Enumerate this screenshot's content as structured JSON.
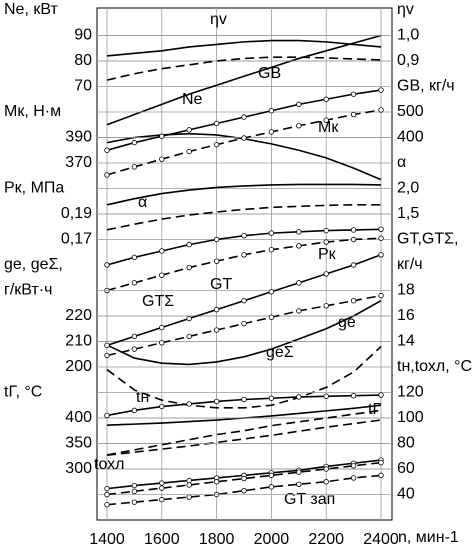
{
  "chart_data": {
    "type": "line",
    "color": "#000000",
    "grid": true,
    "x": [
      1400,
      1500,
      1600,
      1700,
      1800,
      1900,
      2000,
      2100,
      2200,
      2300,
      2400
    ],
    "xlim": [
      1400,
      2400
    ],
    "xticks": [
      1400,
      1600,
      1800,
      2000,
      2200,
      2400
    ],
    "xlabel": "n, мин-1",
    "axes": [
      {
        "side": "left",
        "label": [
          "Ne, кВт"
        ],
        "ylim": [
          -100,
          100
        ],
        "yticks": [
          70,
          80,
          90
        ],
        "series": [
          {
            "name": "Ne",
            "dash": false,
            "markers": false,
            "values": [
              55,
              59,
              63,
              67,
              70.5,
              74,
              77.5,
              81,
              84,
              87,
              90
            ]
          }
        ]
      },
      {
        "side": "left",
        "label": [
          "Мк, Н·м"
        ],
        "ylim": [
          90,
          490
        ],
        "yticks": [
          370,
          390
        ],
        "series": [
          {
            "name": "Мк",
            "dash": false,
            "markers": false,
            "values": [
              386,
              390,
              392,
              393,
              392,
              389,
              385,
              380,
              374,
              366,
              357
            ]
          }
        ]
      },
      {
        "side": "left",
        "label": [
          "Pк, МПа"
        ],
        "ylim": [
          -0.05,
          0.35
        ],
        "yticks": [
          {
            "value": 0.17,
            "label": "0,17"
          },
          {
            "value": 0.19,
            "label": "0,19"
          }
        ],
        "series": [
          {
            "name": "Pк",
            "dash": false,
            "markers": true,
            "values": [
              0.15,
              0.156,
              0.161,
              0.166,
              0.17,
              0.173,
              0.175,
              0.176,
              0.177,
              0.1775,
              0.178
            ]
          },
          {
            "dash": true,
            "markers": true,
            "values": [
              0.13,
              0.136,
              0.142,
              0.148,
              0.153,
              0.158,
              0.162,
              0.165,
              0.168,
              0.17,
              0.171
            ]
          }
        ]
      },
      {
        "side": "left",
        "label": [
          "ge, geΣ,",
          "г/кВт·ч"
        ],
        "ylim": [
          140,
          340
        ],
        "yticks": [
          200,
          210,
          220
        ],
        "series": [
          {
            "name": "ge",
            "dash": false,
            "markers": false,
            "values": [
              208.6,
              203.5,
              201.5,
              201,
              202,
              204,
              207,
              211,
              215,
              220,
              226
            ]
          },
          {
            "name": "geΣ",
            "dash": true,
            "markers": false,
            "values": [
              199,
              191,
              187,
              185,
              184,
              184,
              185,
              188,
              192,
              198,
              208
            ]
          }
        ]
      },
      {
        "side": "left",
        "label": [
          "tΓ, °C"
        ],
        "ylim": [
          200,
          1200
        ],
        "yticks": [
          300,
          350,
          400
        ],
        "series": [
          {
            "name": "tΓ",
            "dash": false,
            "markers": false,
            "values": [
              386,
              388,
              390,
              393,
              396,
              400,
              404,
              409,
              414,
              419,
              425
            ]
          },
          {
            "dash": true,
            "markers": false,
            "values": [
              327,
              333,
              339,
              345,
              352,
              359,
              366,
              374,
              382,
              389,
              396
            ]
          }
        ]
      },
      {
        "side": "right",
        "label": [
          "ηv"
        ],
        "ylim": [
          -0.9,
          1.1
        ],
        "yticks": [
          {
            "value": 0.9,
            "label": "0,9"
          },
          {
            "value": 1,
            "label": "1,0"
          }
        ],
        "series": [
          {
            "name": "ηv",
            "dash": false,
            "markers": false,
            "values": [
              0.92,
              0.93,
              0.94,
              0.955,
              0.965,
              0.975,
              0.98,
              0.98,
              0.975,
              0.965,
              0.955
            ]
          },
          {
            "dash": true,
            "markers": false,
            "values": [
              0.825,
              0.85,
              0.87,
              0.885,
              0.9,
              0.91,
              0.915,
              0.915,
              0.912,
              0.908,
              0.904
            ]
          }
        ]
      },
      {
        "side": "right",
        "label": [
          "GВ, кг/ч"
        ],
        "ylim": [
          -1100,
          900
        ],
        "yticks": [
          400,
          500
        ],
        "series": [
          {
            "name": "GВ",
            "dash": false,
            "markers": true,
            "values": [
              350,
              380,
              405,
              430,
              455,
              480,
              505,
              530,
              550,
              570,
              586
            ]
          },
          {
            "dash": true,
            "markers": true,
            "values": [
              253,
              285,
              315,
              345,
              372,
              398,
              422,
              446,
              468,
              490,
              508
            ]
          }
        ]
      },
      {
        "side": "right",
        "label": [
          "α"
        ],
        "ylim": [
          -4.5,
          5.5
        ],
        "yticks": [
          {
            "value": 1.5,
            "label": "1,5"
          },
          {
            "value": 2,
            "label": "2,0"
          }
        ],
        "series": [
          {
            "dash": false,
            "markers": false,
            "values": [
              1.68,
              1.8,
              1.9,
              1.97,
              2.02,
              2.05,
              2.07,
              2.08,
              2.08,
              2.08,
              2.07
            ]
          },
          {
            "name": "α",
            "dash": true,
            "markers": false,
            "values": [
              1.19,
              1.3,
              1.4,
              1.48,
              1.54,
              1.59,
              1.63,
              1.65,
              1.67,
              1.68,
              1.68
            ]
          }
        ]
      },
      {
        "side": "right",
        "label": [
          "GT,GTΣ,",
          "кг/ч"
        ],
        "ylim": [
          0,
          40
        ],
        "yticks": [
          14,
          16,
          18
        ],
        "series": [
          {
            "name": "GT",
            "dash": false,
            "markers": true,
            "values": [
              13.7,
              14.4,
              15.1,
              15.8,
              16.5,
              17.2,
              17.9,
              18.6,
              19.3,
              20,
              20.8
            ]
          },
          {
            "name": "GTΣ",
            "dash": true,
            "markers": true,
            "values": [
              12.9,
              13.4,
              13.9,
              14.4,
              14.9,
              15.4,
              15.9,
              16.4,
              16.8,
              17.2,
              17.6
            ]
          },
          {
            "name": "GT зап",
            "dash": true,
            "markers": true,
            "values": [
              1.2,
              1.4,
              1.6,
              1.8,
              2,
              2.3,
              2.6,
              2.8,
              3,
              3.3,
              3.5
            ]
          }
        ]
      },
      {
        "side": "right",
        "label": [
          "tн,tохл, °C"
        ],
        "ylim": [
          20,
          420
        ],
        "yticks": [
          40,
          60,
          80,
          100,
          120
        ],
        "series": [
          {
            "name": "tн",
            "dash": false,
            "markers": true,
            "values": [
              102,
              106,
              109,
              111,
              113,
              114.5,
              115.5,
              116.5,
              117,
              117.5,
              118
            ]
          },
          {
            "dash": true,
            "markers": false,
            "values": [
              71,
              75,
              79,
              83,
              87,
              90,
              94,
              97,
              100,
              103,
              106
            ]
          },
          {
            "name": "tохл",
            "dash": false,
            "markers": true,
            "values": [
              44.6,
              47,
              49,
              51,
              53,
              55,
              57,
              59,
              62,
              64.5,
              67
            ]
          },
          {
            "dash": true,
            "markers": true,
            "values": [
              40,
              42.5,
              45,
              47.5,
              50,
              52.5,
              55,
              57.5,
              60,
              62.5,
              65
            ]
          }
        ]
      }
    ]
  }
}
